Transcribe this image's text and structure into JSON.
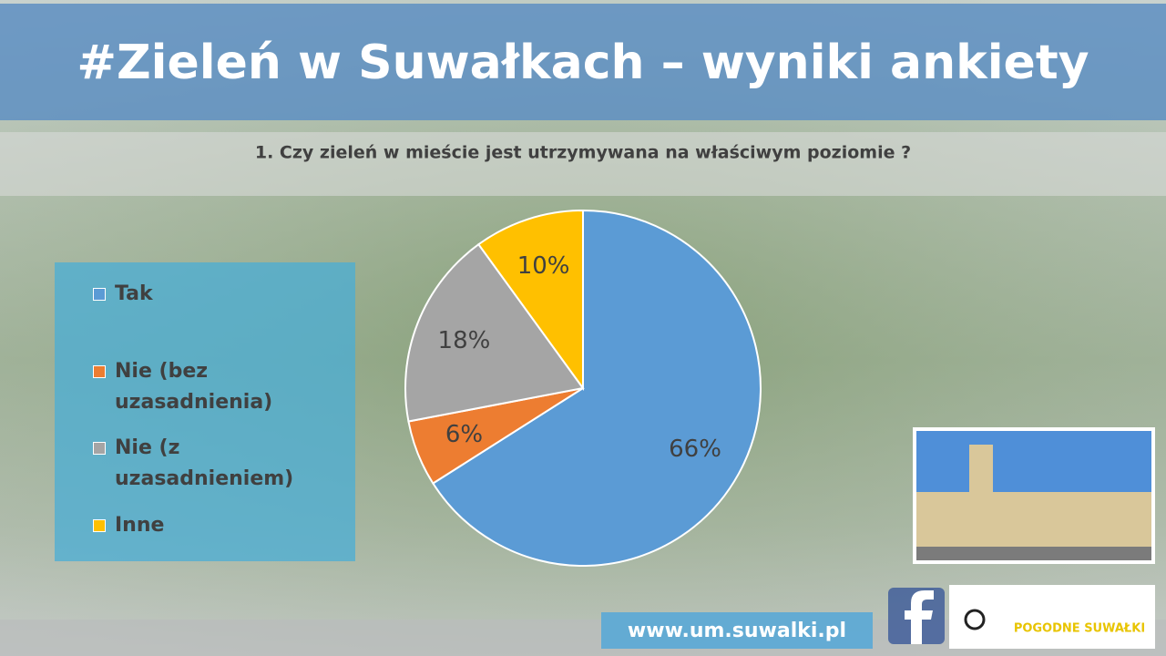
{
  "chart_data": {
    "type": "pie",
    "title": "#Zieleń w Suwałkach – wyniki ankiety",
    "subtitle": "1. Czy zieleń w mieście jest utrzymywana na właściwym poziomie ?",
    "categories": [
      "Tak",
      "Nie (bez uzasadnienia)",
      "Nie (z uzasadnieniem)",
      "Inne"
    ],
    "values": [
      66,
      6,
      18,
      10
    ],
    "value_labels": [
      "66%",
      "6%",
      "18%",
      "10%"
    ],
    "colors": [
      "#5b9bd5",
      "#ed7d31",
      "#a5a5a5",
      "#ffc000"
    ],
    "legend": "left"
  },
  "footer": {
    "url": "www.um.suwalki.pl",
    "logo": "POGODNE SUWAŁKI"
  }
}
